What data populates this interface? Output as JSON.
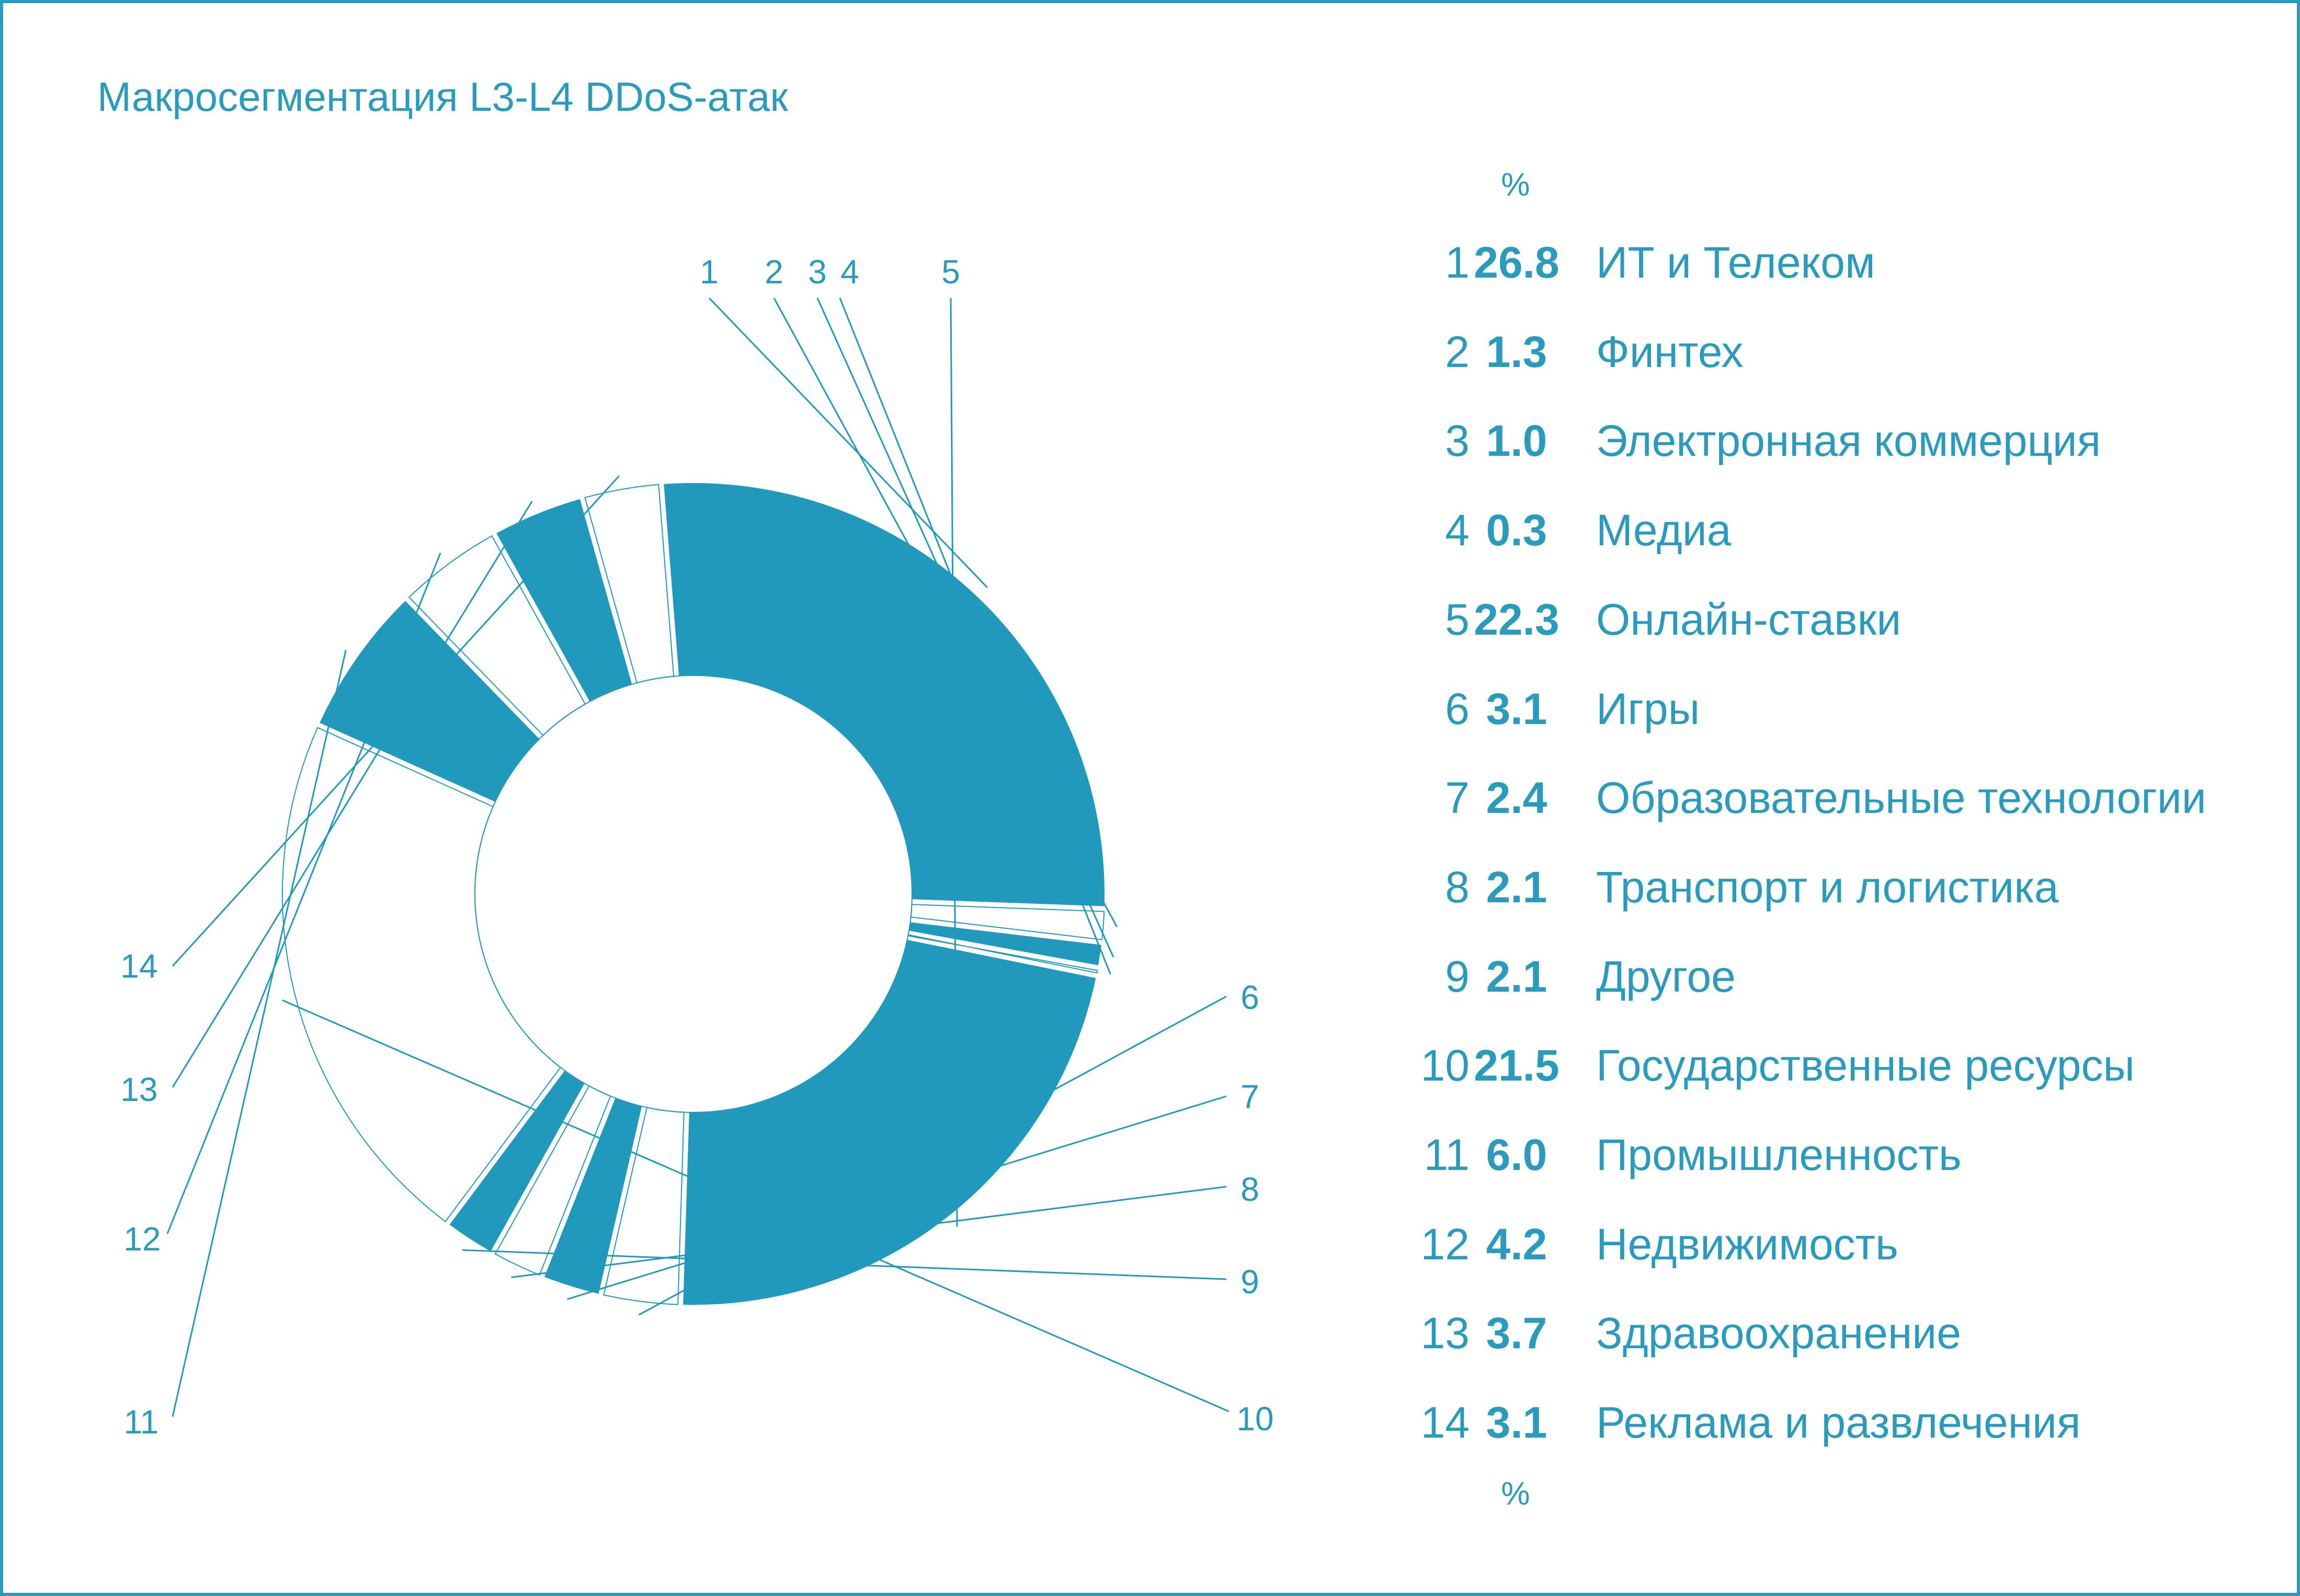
{
  "title": "Макросегментация L3-L4 DDoS-атак",
  "percent_header": "%",
  "percent_footer": "%",
  "colors": {
    "accent": "#2199bc",
    "text": "#2a9bbc",
    "border": "#2a9bbc",
    "light_segment": "#ffffff"
  },
  "chart_data": {
    "type": "pie",
    "title": "Макросегментация L3-L4 DDoS-атак",
    "unit": "%",
    "donut": true,
    "legend": [
      {
        "id": "1",
        "value": 26.8,
        "label": "ИТ и Телеком",
        "fill": "accent"
      },
      {
        "id": "2",
        "value": 1.3,
        "label": "Финтех",
        "fill": "light"
      },
      {
        "id": "3",
        "value": 1.0,
        "label": "Электронная коммерция",
        "fill": "accent"
      },
      {
        "id": "4",
        "value": 0.3,
        "label": "Медиа",
        "fill": "light"
      },
      {
        "id": "5",
        "value": 22.3,
        "label": "Онлайн-ставки",
        "fill": "accent"
      },
      {
        "id": "6",
        "value": 3.1,
        "label": "Игры",
        "fill": "light"
      },
      {
        "id": "7",
        "value": 2.4,
        "label": "Образовательные технологии",
        "fill": "accent"
      },
      {
        "id": "8",
        "value": 2.1,
        "label": "Транспорт и логистика",
        "fill": "light"
      },
      {
        "id": "9",
        "value": 2.1,
        "label": "Другое",
        "fill": "accent"
      },
      {
        "id": "10",
        "value": 21.5,
        "label": "Государственные ресурсы",
        "fill": "light"
      },
      {
        "id": "11",
        "value": 6.0,
        "label": "Промышленность",
        "fill": "accent"
      },
      {
        "id": "12",
        "value": 4.2,
        "label": "Недвижимость",
        "fill": "light"
      },
      {
        "id": "13",
        "value": 3.7,
        "label": "Здравоохранение",
        "fill": "accent"
      },
      {
        "id": "14",
        "value": 3.1,
        "label": "Реклама и развлечения",
        "fill": "light"
      }
    ]
  }
}
